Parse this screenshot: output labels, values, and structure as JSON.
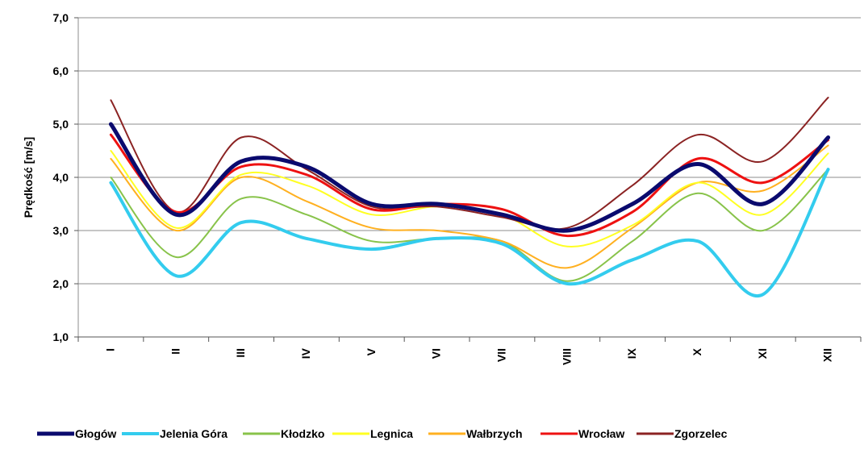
{
  "chart_data": {
    "type": "line",
    "title": "",
    "xlabel": "",
    "ylabel": "Prędkość [m/s]",
    "categories": [
      "I",
      "II",
      "III",
      "IV",
      "V",
      "VI",
      "VII",
      "VIII",
      "IX",
      "X",
      "XI",
      "XII"
    ],
    "ylim": [
      1.0,
      7.0
    ],
    "yticks": [
      "1,0",
      "2,0",
      "3,0",
      "4,0",
      "5,0",
      "6,0",
      "7,0"
    ],
    "grid": true,
    "legend_position": "bottom",
    "series": [
      {
        "name": "Głogów",
        "color": "#0a0a6e",
        "width": 5,
        "values": [
          5.0,
          3.3,
          4.3,
          4.2,
          3.5,
          3.5,
          3.3,
          3.0,
          3.5,
          4.25,
          3.5,
          4.75
        ]
      },
      {
        "name": "Jelenia Góra",
        "color": "#33ccee",
        "width": 4,
        "values": [
          3.9,
          2.15,
          3.15,
          2.85,
          2.65,
          2.85,
          2.75,
          2.0,
          2.45,
          2.8,
          1.8,
          4.15
        ]
      },
      {
        "name": "Kłodzko",
        "color": "#88c34a",
        "width": 2,
        "values": [
          4.0,
          2.5,
          3.6,
          3.3,
          2.8,
          2.85,
          2.8,
          2.05,
          2.8,
          3.7,
          3.0,
          4.15
        ]
      },
      {
        "name": "Legnica",
        "color": "#ffff22",
        "width": 2,
        "values": [
          4.5,
          3.05,
          4.05,
          3.85,
          3.3,
          3.45,
          3.3,
          2.7,
          3.1,
          3.9,
          3.3,
          4.45
        ]
      },
      {
        "name": "Wałbrzych",
        "color": "#ffb020",
        "width": 2,
        "values": [
          4.35,
          3.0,
          4.0,
          3.55,
          3.05,
          3.0,
          2.8,
          2.3,
          3.05,
          3.9,
          3.75,
          4.6
        ]
      },
      {
        "name": "Wrocław",
        "color": "#ee1111",
        "width": 3,
        "values": [
          4.8,
          3.35,
          4.2,
          4.05,
          3.4,
          3.5,
          3.4,
          2.9,
          3.35,
          4.35,
          3.9,
          4.7
        ]
      },
      {
        "name": "Zgorzelec",
        "color": "#8b2323",
        "width": 2,
        "values": [
          5.45,
          3.35,
          4.75,
          4.15,
          3.45,
          3.45,
          3.25,
          3.05,
          3.85,
          4.8,
          4.3,
          5.5
        ]
      }
    ]
  }
}
